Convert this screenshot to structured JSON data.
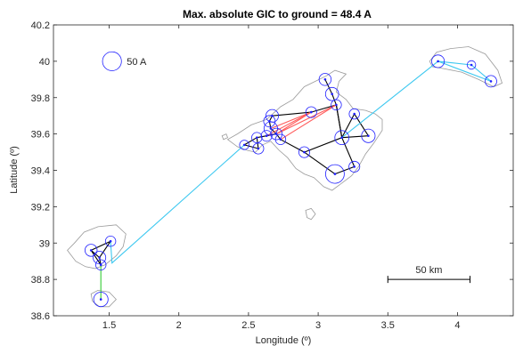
{
  "chart_data": {
    "type": "scatter",
    "title": "Max. absolute GIC to ground = 48.4 A",
    "xlabel": "Longitude (º)",
    "ylabel": "Latitude (º)",
    "xlim": [
      1.1,
      4.4
    ],
    "ylim": [
      38.6,
      40.2
    ],
    "xticks": [
      1.5,
      2,
      2.5,
      3,
      3.5,
      4
    ],
    "yticks": [
      38.6,
      38.8,
      39,
      39.2,
      39.4,
      39.6,
      39.8,
      40,
      40.2
    ],
    "xtick_labels": [
      "1.5",
      "2",
      "2.5",
      "3",
      "3.5",
      "4"
    ],
    "ytick_labels": [
      "38.6",
      "38.8",
      "39",
      "39.2",
      "39.4",
      "39.6",
      "39.8",
      "40",
      "40.2"
    ],
    "legend": {
      "label": "50 A",
      "gic": 50,
      "lon": 1.52,
      "lat": 40.0
    },
    "scalebar": {
      "label": "50 km",
      "lon_start": 3.5,
      "lon_end": 4.09,
      "lat": 38.8
    },
    "colors": {
      "coast": "#9a9a9a",
      "lines_black": "#000000",
      "lines_red": "#ff5a5a",
      "lines_cyan": "#3cc8f0",
      "lines_green": "#33cc33",
      "markers": "#1f1fff"
    },
    "coastlines": [
      {
        "name": "Mallorca",
        "points": [
          [
            2.35,
            39.57
          ],
          [
            2.42,
            39.53
          ],
          [
            2.49,
            39.51
          ],
          [
            2.55,
            39.5
          ],
          [
            2.6,
            39.54
          ],
          [
            2.66,
            39.56
          ],
          [
            2.72,
            39.51
          ],
          [
            2.78,
            39.47
          ],
          [
            2.84,
            39.41
          ],
          [
            2.9,
            39.38
          ],
          [
            2.97,
            39.36
          ],
          [
            3.04,
            39.31
          ],
          [
            3.1,
            39.29
          ],
          [
            3.17,
            39.33
          ],
          [
            3.24,
            39.37
          ],
          [
            3.29,
            39.42
          ],
          [
            3.34,
            39.49
          ],
          [
            3.4,
            39.55
          ],
          [
            3.46,
            39.62
          ],
          [
            3.46,
            39.68
          ],
          [
            3.41,
            39.71
          ],
          [
            3.34,
            39.73
          ],
          [
            3.25,
            39.74
          ],
          [
            3.2,
            39.79
          ],
          [
            3.13,
            39.83
          ],
          [
            3.15,
            39.89
          ],
          [
            3.2,
            39.93
          ],
          [
            3.12,
            39.95
          ],
          [
            3.06,
            39.92
          ],
          [
            2.98,
            39.89
          ],
          [
            2.9,
            39.86
          ],
          [
            2.82,
            39.79
          ],
          [
            2.73,
            39.75
          ],
          [
            2.63,
            39.68
          ],
          [
            2.52,
            39.65
          ],
          [
            2.42,
            39.6
          ],
          [
            2.35,
            39.57
          ]
        ]
      },
      {
        "name": "Menorca",
        "points": [
          [
            3.8,
            40.0
          ],
          [
            3.85,
            40.05
          ],
          [
            3.95,
            40.07
          ],
          [
            4.08,
            40.08
          ],
          [
            4.2,
            40.04
          ],
          [
            4.29,
            39.95
          ],
          [
            4.32,
            39.88
          ],
          [
            4.26,
            39.86
          ],
          [
            4.15,
            39.9
          ],
          [
            4.03,
            39.94
          ],
          [
            3.9,
            39.96
          ],
          [
            3.82,
            39.97
          ],
          [
            3.8,
            40.0
          ]
        ]
      },
      {
        "name": "Ibiza",
        "points": [
          [
            1.2,
            38.96
          ],
          [
            1.25,
            39.0
          ],
          [
            1.32,
            39.06
          ],
          [
            1.42,
            39.09
          ],
          [
            1.55,
            39.1
          ],
          [
            1.62,
            39.05
          ],
          [
            1.6,
            38.98
          ],
          [
            1.55,
            38.93
          ],
          [
            1.47,
            38.88
          ],
          [
            1.4,
            38.86
          ],
          [
            1.33,
            38.87
          ],
          [
            1.26,
            38.9
          ],
          [
            1.2,
            38.96
          ]
        ]
      },
      {
        "name": "Formentera",
        "points": [
          [
            1.37,
            38.72
          ],
          [
            1.42,
            38.74
          ],
          [
            1.5,
            38.73
          ],
          [
            1.55,
            38.69
          ],
          [
            1.5,
            38.65
          ],
          [
            1.43,
            38.65
          ],
          [
            1.38,
            38.68
          ],
          [
            1.37,
            38.72
          ]
        ]
      },
      {
        "name": "Cabrera",
        "points": [
          [
            2.91,
            39.18
          ],
          [
            2.95,
            39.19
          ],
          [
            2.98,
            39.16
          ],
          [
            2.95,
            39.13
          ],
          [
            2.92,
            39.14
          ],
          [
            2.91,
            39.18
          ]
        ]
      },
      {
        "name": "Dragonera",
        "points": [
          [
            2.31,
            39.59
          ],
          [
            2.34,
            39.6
          ],
          [
            2.35,
            39.58
          ],
          [
            2.32,
            39.57
          ],
          [
            2.31,
            39.59
          ]
        ]
      }
    ],
    "nodes": [
      {
        "id": "M1",
        "lon": 3.05,
        "lat": 39.9,
        "gic": 14
      },
      {
        "id": "M2",
        "lon": 3.1,
        "lat": 39.82,
        "gic": 18
      },
      {
        "id": "M3",
        "lon": 3.13,
        "lat": 39.76,
        "gic": 8
      },
      {
        "id": "M4",
        "lon": 2.95,
        "lat": 39.72,
        "gic": 10
      },
      {
        "id": "M5",
        "lon": 2.67,
        "lat": 39.7,
        "gic": 16
      },
      {
        "id": "M6",
        "lon": 2.65,
        "lat": 39.67,
        "gic": 12
      },
      {
        "id": "M7",
        "lon": 2.66,
        "lat": 39.63,
        "gic": 20
      },
      {
        "id": "M8",
        "lon": 2.7,
        "lat": 39.6,
        "gic": 12
      },
      {
        "id": "M9",
        "lon": 2.63,
        "lat": 39.59,
        "gic": 10
      },
      {
        "id": "M10",
        "lon": 2.56,
        "lat": 39.58,
        "gic": 8
      },
      {
        "id": "M11",
        "lon": 2.47,
        "lat": 39.54,
        "gic": 6
      },
      {
        "id": "M12",
        "lon": 2.57,
        "lat": 39.52,
        "gic": 10
      },
      {
        "id": "M13",
        "lon": 2.73,
        "lat": 39.57,
        "gic": 8
      },
      {
        "id": "M14",
        "lon": 2.9,
        "lat": 39.5,
        "gic": 10
      },
      {
        "id": "M15",
        "lon": 3.12,
        "lat": 39.38,
        "gic": 48.4
      },
      {
        "id": "M16",
        "lon": 3.17,
        "lat": 39.58,
        "gic": 22
      },
      {
        "id": "M17",
        "lon": 3.26,
        "lat": 39.42,
        "gic": 10
      },
      {
        "id": "M18",
        "lon": 3.36,
        "lat": 39.59,
        "gic": 20
      },
      {
        "id": "M19",
        "lon": 3.26,
        "lat": 39.71,
        "gic": 8
      },
      {
        "id": "N1",
        "lon": 3.86,
        "lat": 40.0,
        "gic": 16
      },
      {
        "id": "N2",
        "lon": 4.1,
        "lat": 39.98,
        "gic": 4
      },
      {
        "id": "N3",
        "lon": 4.24,
        "lat": 39.89,
        "gic": 12
      },
      {
        "id": "I1",
        "lon": 1.37,
        "lat": 38.96,
        "gic": 14
      },
      {
        "id": "I2",
        "lon": 1.43,
        "lat": 38.92,
        "gic": 16
      },
      {
        "id": "I3",
        "lon": 1.51,
        "lat": 39.01,
        "gic": 8
      },
      {
        "id": "I4",
        "lon": 1.44,
        "lat": 38.88,
        "gic": 8
      },
      {
        "id": "F1",
        "lon": 1.44,
        "lat": 38.69,
        "gic": 24
      }
    ],
    "edges": [
      {
        "from": "M1",
        "to": "M2",
        "color": "black"
      },
      {
        "from": "M2",
        "to": "M3",
        "color": "black"
      },
      {
        "from": "M3",
        "to": "M4",
        "color": "black"
      },
      {
        "from": "M4",
        "to": "M5",
        "color": "black"
      },
      {
        "from": "M5",
        "to": "M6",
        "color": "black"
      },
      {
        "from": "M6",
        "to": "M7",
        "color": "black"
      },
      {
        "from": "M7",
        "to": "M8",
        "color": "black"
      },
      {
        "from": "M8",
        "to": "M9",
        "color": "black"
      },
      {
        "from": "M9",
        "to": "M10",
        "color": "black"
      },
      {
        "from": "M10",
        "to": "M11",
        "color": "black"
      },
      {
        "from": "M11",
        "to": "M12",
        "color": "black"
      },
      {
        "from": "M10",
        "to": "M12",
        "color": "black"
      },
      {
        "from": "M8",
        "to": "M13",
        "color": "black"
      },
      {
        "from": "M13",
        "to": "M14",
        "color": "black"
      },
      {
        "from": "M14",
        "to": "M15",
        "color": "black"
      },
      {
        "from": "M15",
        "to": "M17",
        "color": "black"
      },
      {
        "from": "M17",
        "to": "M16",
        "color": "black"
      },
      {
        "from": "M16",
        "to": "M18",
        "color": "black"
      },
      {
        "from": "M18",
        "to": "M19",
        "color": "black"
      },
      {
        "from": "M19",
        "to": "M16",
        "color": "black"
      },
      {
        "from": "M16",
        "to": "M3",
        "color": "black"
      },
      {
        "from": "M14",
        "to": "M16",
        "color": "black"
      },
      {
        "from": "M3",
        "to": "M16",
        "color": "black"
      },
      {
        "from": "M7",
        "to": "M4",
        "color": "red"
      },
      {
        "from": "M8",
        "to": "M4",
        "color": "red"
      },
      {
        "from": "M8",
        "to": "M3",
        "color": "red"
      },
      {
        "from": "M13",
        "to": "M3",
        "color": "red"
      },
      {
        "from": "M9",
        "to": "M4",
        "color": "red"
      },
      {
        "from": "M11",
        "to": "I3",
        "color": "cyan",
        "via": [
          [
            1.52,
            38.89
          ]
        ]
      },
      {
        "from": "M16",
        "to": "N1",
        "color": "cyan"
      },
      {
        "from": "N1",
        "to": "N2",
        "color": "cyan"
      },
      {
        "from": "N2",
        "to": "N3",
        "color": "cyan"
      },
      {
        "from": "N1",
        "to": "N3",
        "color": "cyan"
      },
      {
        "from": "I1",
        "to": "I2",
        "color": "black"
      },
      {
        "from": "I2",
        "to": "I3",
        "color": "black"
      },
      {
        "from": "I3",
        "to": "I1",
        "color": "black"
      },
      {
        "from": "I1",
        "to": "I4",
        "color": "black"
      },
      {
        "from": "I2",
        "to": "I4",
        "color": "black"
      },
      {
        "from": "I4",
        "to": "F1",
        "color": "green"
      }
    ]
  }
}
